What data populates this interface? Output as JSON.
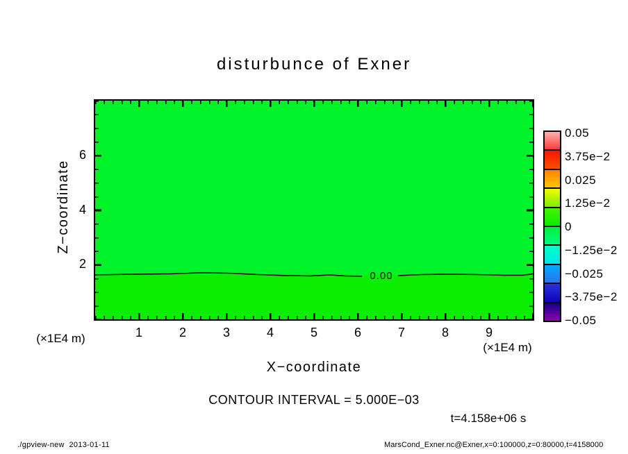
{
  "title": "disturbunce of Exner",
  "chart_data": {
    "type": "heatmap",
    "subtype": "filled-contour-plot",
    "title": "disturbunce of Exner",
    "xlabel": "X−coordinate",
    "ylabel": "Z−coordinate",
    "x_unit_label": "(×1E4 m)",
    "xlim": [
      0,
      10
    ],
    "ylim": [
      0,
      8
    ],
    "x_ticks": [
      1,
      2,
      3,
      4,
      5,
      6,
      7,
      8,
      9
    ],
    "y_ticks": [
      2,
      4,
      6
    ],
    "x_minor_step": 0.2,
    "y_minor_step": 0.5,
    "field_description": "Exner disturbance nearly zero everywhere; single 0.00 contour line running horizontally at z ≈ 1.7 (×1E4 m)",
    "zero_contour_z": 1.7,
    "contour_label": "0.00",
    "contour_interval_text": "CONTOUR INTERVAL = 5.000E−03",
    "time_label": "t=4.158e+06 s",
    "region_colors": {
      "above_contour": "#00f228",
      "below_contour": "#0cee00"
    }
  },
  "colorbar": {
    "min": -0.05,
    "max": 0.05,
    "labels": [
      "0.05",
      "3.75e−2",
      "0.025",
      "1.25e−2",
      "0",
      "−1.25e−2",
      "−0.025",
      "−3.75e−2",
      "−0.05"
    ],
    "block_gradients": [
      [
        "#ffb0b0",
        "#ff3c3c"
      ],
      [
        "#ff1400",
        "#f55000"
      ],
      [
        "#ff8200",
        "#ffc800"
      ],
      [
        "#f0ff00",
        "#7deb00"
      ],
      [
        "#46f500",
        "#0aeb00"
      ],
      [
        "#00f03c",
        "#00fa82"
      ],
      [
        "#00ffc8",
        "#00e6e6"
      ],
      [
        "#00aaff",
        "#2d73f0"
      ],
      [
        "#2832e6",
        "#1400b4"
      ],
      [
        "#14008c",
        "#8c00aa"
      ]
    ]
  },
  "footer": {
    "left": "./gpview-new  2013-01-11",
    "right": "MarsCond_Exner.nc@Exner,x=0:100000,z=0:80000,t=4158000"
  }
}
